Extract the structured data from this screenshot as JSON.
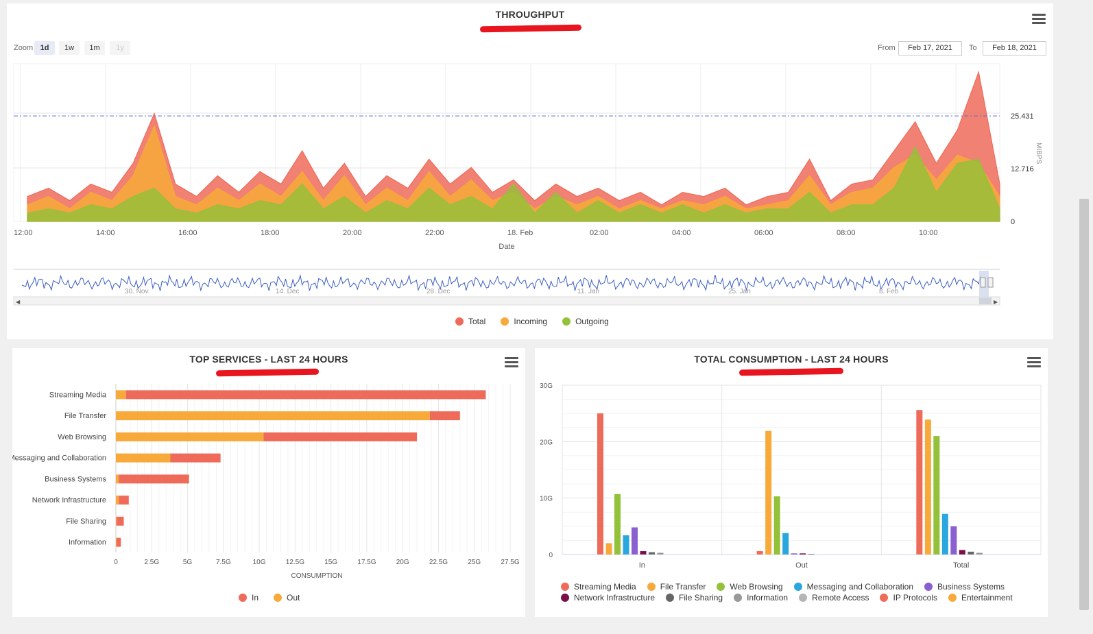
{
  "throughput": {
    "title": "THROUGHPUT",
    "zoom_label": "Zoom",
    "zoom_buttons": [
      "1d",
      "1w",
      "1m",
      "1y"
    ],
    "from_label": "From",
    "from_value": "Feb 17, 2021",
    "to_label": "To",
    "to_value": "Feb 18, 2021",
    "y_axis_label": "MIBPS",
    "y_ticks": [
      "25.431",
      "12.716",
      "0"
    ],
    "x_axis_label": "Date",
    "x_ticks": [
      "12:00",
      "14:00",
      "16:00",
      "18:00",
      "20:00",
      "22:00",
      "18. Feb",
      "02:00",
      "04:00",
      "06:00",
      "08:00",
      "10:00"
    ],
    "navigator_ticks": [
      "30. Nov",
      "14. Dec",
      "28. Dec",
      "11. Jan",
      "25. Jan",
      "8. Feb"
    ],
    "legend": [
      {
        "name": "Total",
        "color": "#ee6b5a"
      },
      {
        "name": "Incoming",
        "color": "#f7a93a"
      },
      {
        "name": "Outgoing",
        "color": "#93c13a"
      }
    ]
  },
  "top_services": {
    "title": "TOP SERVICES - LAST 24 HOURS",
    "x_axis_label": "CONSUMPTION",
    "x_ticks": [
      "0",
      "2.5G",
      "5G",
      "7.5G",
      "10G",
      "12.5G",
      "15G",
      "17.5G",
      "20G",
      "22.5G",
      "25G",
      "27.5G"
    ],
    "legend": [
      {
        "name": "In",
        "color": "#ee6b5a"
      },
      {
        "name": "Out",
        "color": "#f7a93a"
      }
    ]
  },
  "total_consumption": {
    "title": "TOTAL CONSUMPTION - LAST 24 HOURS",
    "y_ticks": [
      "30G",
      "20G",
      "10G",
      "0"
    ],
    "legend": [
      {
        "name": "Streaming Media",
        "color": "#ee6b5a"
      },
      {
        "name": "File Transfer",
        "color": "#f7a93a"
      },
      {
        "name": "Web Browsing",
        "color": "#93c13a"
      },
      {
        "name": "Messaging and Collaboration",
        "color": "#2ba7df"
      },
      {
        "name": "Business Systems",
        "color": "#8a5fd0"
      },
      {
        "name": "Network Infrastructure",
        "color": "#7a0f4a"
      },
      {
        "name": "File Sharing",
        "color": "#666666"
      },
      {
        "name": "Information",
        "color": "#999999"
      },
      {
        "name": "Remote Access",
        "color": "#b5b5b5"
      },
      {
        "name": "IP Protocols",
        "color": "#ee6b5a"
      },
      {
        "name": "Entertainment",
        "color": "#f7a93a"
      }
    ]
  },
  "chart_data": [
    {
      "type": "area",
      "title": "THROUGHPUT",
      "xlabel": "Date",
      "ylabel": "MIBPS",
      "x_range": [
        "Feb 17, 2021 11:00",
        "Feb 18, 2021 11:00"
      ],
      "ylim": [
        0,
        38
      ],
      "reference_line": 25.431,
      "x": [
        "12:00",
        "12:30",
        "13:00",
        "13:30",
        "14:00",
        "14:30",
        "15:00",
        "15:30",
        "16:00",
        "16:30",
        "17:00",
        "17:30",
        "18:00",
        "18:30",
        "19:00",
        "19:30",
        "20:00",
        "20:30",
        "21:00",
        "21:30",
        "22:00",
        "22:30",
        "23:00",
        "23:30",
        "00:00",
        "00:30",
        "01:00",
        "01:30",
        "02:00",
        "02:30",
        "03:00",
        "03:30",
        "04:00",
        "04:30",
        "05:00",
        "05:30",
        "06:00",
        "06:30",
        "07:00",
        "07:30",
        "08:00",
        "08:30",
        "09:00",
        "09:30",
        "10:00",
        "10:30",
        "11:00"
      ],
      "series": [
        {
          "name": "Total",
          "values": [
            6,
            8,
            5,
            9,
            7,
            14,
            26,
            9,
            6,
            11,
            7,
            12,
            9,
            17,
            8,
            14,
            6,
            11,
            8,
            15,
            9,
            13,
            7,
            10,
            5,
            9,
            6,
            8,
            5,
            7,
            4,
            7,
            6,
            8,
            4,
            6,
            7,
            15,
            5,
            9,
            10,
            17,
            24,
            14,
            22,
            36,
            9
          ]
        },
        {
          "name": "Incoming",
          "values": [
            4,
            6,
            3,
            7,
            5,
            11,
            23,
            6,
            4,
            8,
            5,
            9,
            6,
            12,
            5,
            11,
            4,
            8,
            5,
            12,
            6,
            10,
            5,
            7,
            3,
            6,
            4,
            6,
            3,
            5,
            3,
            5,
            4,
            6,
            3,
            4,
            5,
            11,
            4,
            7,
            8,
            13,
            16,
            10,
            16,
            14,
            6
          ]
        },
        {
          "name": "Outgoing",
          "values": [
            2,
            3,
            2,
            4,
            3,
            6,
            8,
            3,
            2,
            4,
            3,
            5,
            4,
            9,
            3,
            6,
            2,
            5,
            3,
            8,
            4,
            6,
            3,
            9,
            2,
            7,
            2,
            5,
            2,
            4,
            2,
            4,
            2,
            4,
            2,
            3,
            3,
            7,
            2,
            4,
            4,
            8,
            18,
            7,
            14,
            15,
            3
          ]
        }
      ]
    },
    {
      "type": "bar",
      "orientation": "horizontal",
      "stacked": true,
      "title": "TOP SERVICES - LAST 24 HOURS",
      "xlabel": "CONSUMPTION",
      "xlim": [
        0,
        27.5
      ],
      "unit": "G",
      "categories": [
        "Streaming Media",
        "File Transfer",
        "Web Browsing",
        "Messaging and Collaboration",
        "Business Systems",
        "Network Infrastructure",
        "File Sharing",
        "Information"
      ],
      "series": [
        {
          "name": "Out",
          "values": [
            0.7,
            21.9,
            10.3,
            3.8,
            0.2,
            0.2,
            0.05,
            0.05
          ]
        },
        {
          "name": "In",
          "values": [
            25.1,
            2.1,
            10.7,
            3.5,
            4.9,
            0.7,
            0.5,
            0.3
          ]
        }
      ]
    },
    {
      "type": "bar",
      "title": "TOTAL CONSUMPTION - LAST 24 HOURS",
      "ylim": [
        0,
        30
      ],
      "unit": "G",
      "categories": [
        "In",
        "Out",
        "Total"
      ],
      "series": [
        {
          "name": "Streaming Media",
          "values": [
            25.0,
            0.6,
            25.6
          ]
        },
        {
          "name": "File Transfer",
          "values": [
            2.0,
            21.9,
            23.9
          ]
        },
        {
          "name": "Web Browsing",
          "values": [
            10.7,
            10.3,
            21.0
          ]
        },
        {
          "name": "Messaging and Collaboration",
          "values": [
            3.4,
            3.8,
            7.2
          ]
        },
        {
          "name": "Business Systems",
          "values": [
            4.8,
            0.2,
            5.0
          ]
        },
        {
          "name": "Network Infrastructure",
          "values": [
            0.6,
            0.2,
            0.8
          ]
        },
        {
          "name": "File Sharing",
          "values": [
            0.4,
            0.1,
            0.5
          ]
        },
        {
          "name": "Information",
          "values": [
            0.3,
            0.0,
            0.3
          ]
        },
        {
          "name": "Remote Access",
          "values": [
            0.0,
            0.0,
            0.0
          ]
        },
        {
          "name": "IP Protocols",
          "values": [
            0.0,
            0.0,
            0.0
          ]
        },
        {
          "name": "Entertainment",
          "values": [
            0.0,
            0.0,
            0.0
          ]
        }
      ]
    }
  ]
}
